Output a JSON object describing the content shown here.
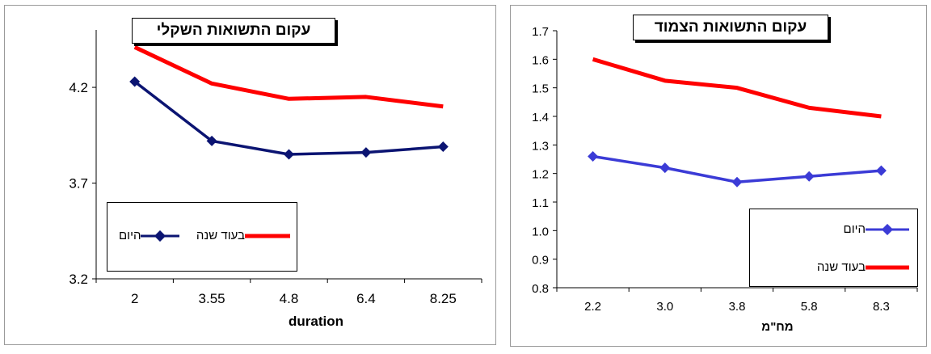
{
  "colors": {
    "chart1_today": "#0b1472",
    "chart1_year": "#ff0000",
    "chart2_today": "#3b3bd6",
    "chart2_year": "#ff0000"
  },
  "chart_data": [
    {
      "type": "line",
      "title": "עקום התשואות השקלי",
      "xlabel": "duration",
      "ylabel": "",
      "categories": [
        "2",
        "3.55",
        "4.8",
        "6.4",
        "8.25"
      ],
      "ylim": [
        3.2,
        4.5
      ],
      "yticks": [
        "4.2",
        "3.7",
        "3.2"
      ],
      "grid": false,
      "legend": "bottom-left",
      "series": [
        {
          "name": "היום",
          "values": [
            4.23,
            3.92,
            3.85,
            3.86,
            3.89
          ],
          "marker": "diamond"
        },
        {
          "name": "בעוד שנה",
          "values": [
            4.41,
            4.22,
            4.14,
            4.15,
            4.1
          ],
          "marker": "none"
        }
      ]
    },
    {
      "type": "line",
      "title": "עקום התשואות הצמוד",
      "xlabel": "מח\"מ",
      "ylabel": "",
      "categories": [
        "2.2",
        "3.0",
        "3.8",
        "5.8",
        "8.3"
      ],
      "ylim": [
        0.8,
        1.7
      ],
      "yticks": [
        "1.7",
        "1.6",
        "1.5",
        "1.4",
        "1.3",
        "1.2",
        "1.1",
        "1.0",
        "0.9",
        "0.8"
      ],
      "grid": false,
      "legend": "bottom-right",
      "series": [
        {
          "name": "היום",
          "values": [
            1.26,
            1.22,
            1.17,
            1.19,
            1.21
          ],
          "marker": "diamond"
        },
        {
          "name": "בעוד שנה",
          "values": [
            1.6,
            1.525,
            1.5,
            1.43,
            1.4
          ],
          "marker": "none"
        }
      ]
    }
  ]
}
